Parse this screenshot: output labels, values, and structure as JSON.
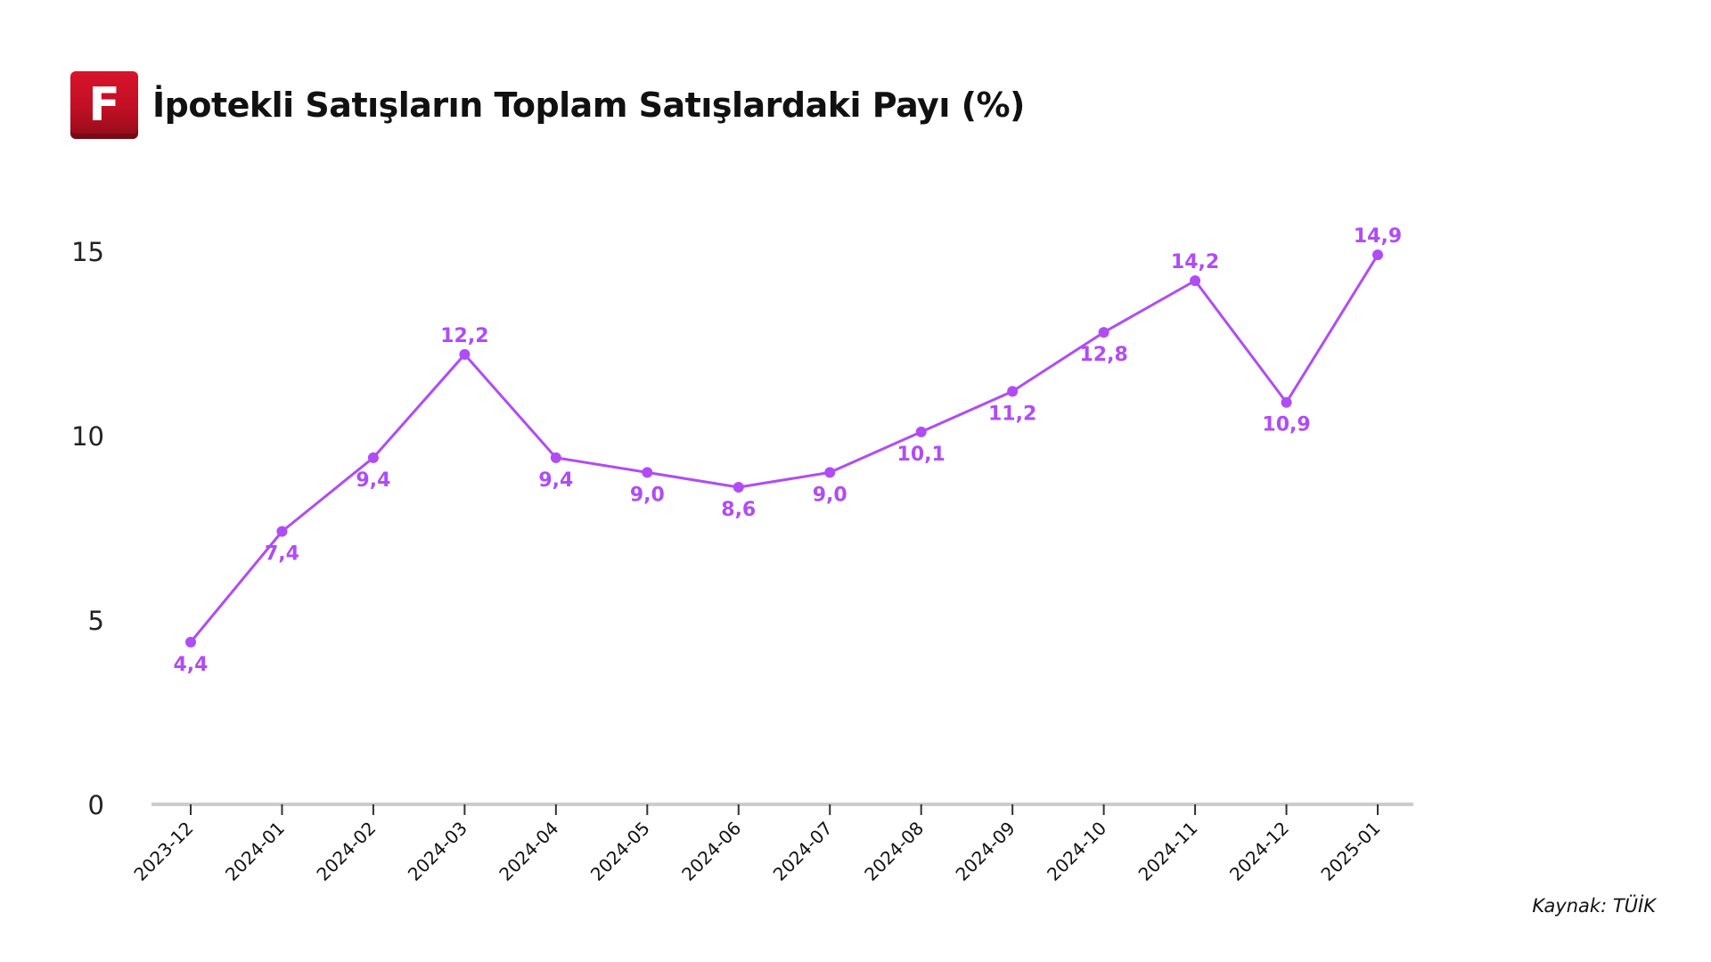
{
  "header": {
    "logo_letter": "F",
    "title": "İpotekli Satışların Toplam Satışlardaki Payı (%)"
  },
  "source": "Kaynak: TÜİK",
  "colors": {
    "series": "#b04cf5",
    "axis": "#cccccc",
    "logo": "#c8102e"
  },
  "chart_data": {
    "type": "line",
    "title": "İpotekli Satışların Toplam Satışlardaki Payı (%)",
    "x": [
      "2023-12",
      "2024-01",
      "2024-02",
      "2024-03",
      "2024-04",
      "2024-05",
      "2024-06",
      "2024-07",
      "2024-08",
      "2024-09",
      "2024-10",
      "2024-11",
      "2024-12",
      "2025-01"
    ],
    "series": [
      {
        "values": [
          4.4,
          7.4,
          9.4,
          12.2,
          9.4,
          9.0,
          8.6,
          9.0,
          10.1,
          11.2,
          12.8,
          14.2,
          10.9,
          14.9
        ],
        "labels": [
          "4,4",
          "7,4",
          "9,4",
          "12,2",
          "9,4",
          "9,0",
          "8,6",
          "9,0",
          "10,1",
          "11,2",
          "12,8",
          "14,2",
          "10,9",
          "14,9"
        ]
      }
    ],
    "label_position": [
      "below",
      "below",
      "below",
      "above",
      "below",
      "below",
      "below",
      "below",
      "below",
      "below",
      "below",
      "above",
      "below",
      "above"
    ],
    "yticks": [
      0,
      5,
      10,
      15
    ],
    "ytick_labels": [
      "0",
      "5",
      "10",
      "15"
    ],
    "ylim": [
      0,
      15
    ],
    "xlabel": "",
    "ylabel": "",
    "grid": false,
    "legend": "none"
  }
}
